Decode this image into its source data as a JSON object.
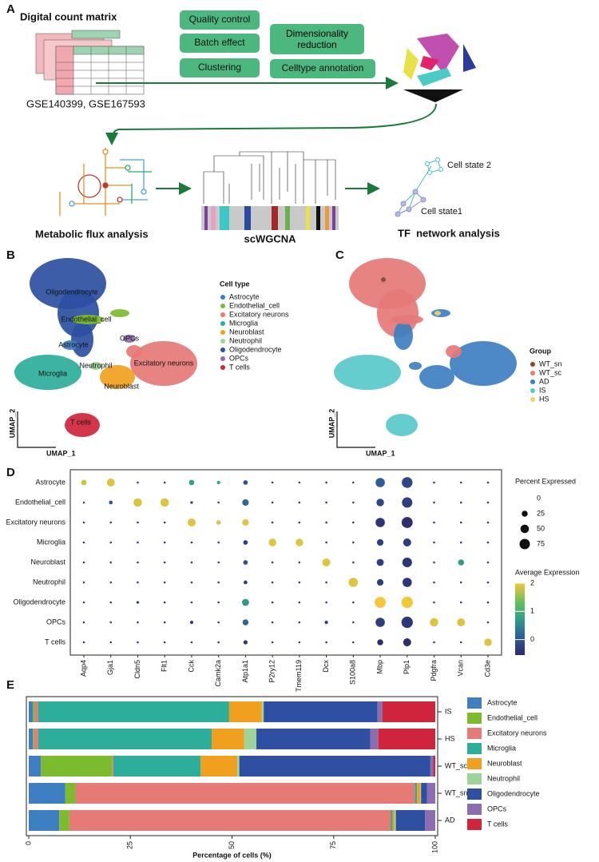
{
  "panel_labels": [
    "A",
    "B",
    "C",
    "D",
    "E"
  ],
  "workflow": {
    "matrix_title": "Digital count matrix",
    "datasets": "GSE140399, GSE167593",
    "steps": [
      "Quality control",
      "Batch effect",
      "Clustering",
      "Dimensionality reduction",
      "Celltype annotation"
    ],
    "analyses": [
      "Metabolic flux analysis",
      "scWGCNA",
      "TF  network analysis"
    ],
    "states": [
      "Cell state 2",
      "Cell state1"
    ]
  },
  "chart_data": [
    {
      "type": "scatter",
      "xlabel": "UMAP_1",
      "ylabel": "UMAP_2",
      "legend_title": "Cell type",
      "series": [
        {
          "name": "Astrocyte",
          "color": "#3e7fc1"
        },
        {
          "name": "Endothelial_cell",
          "color": "#7dbb2e"
        },
        {
          "name": "Excitatory neurons",
          "color": "#e57a77"
        },
        {
          "name": "Microglia",
          "color": "#2cae9b"
        },
        {
          "name": "Neuroblast",
          "color": "#f0a01e"
        },
        {
          "name": "Neutrophil",
          "color": "#9ed39a"
        },
        {
          "name": "Oligodendrocyte",
          "color": "#2e4fa2"
        },
        {
          "name": "OPCs",
          "color": "#8b6db0"
        },
        {
          "name": "T cells",
          "color": "#d0243c"
        }
      ],
      "cluster_labels": [
        "Astrocyte",
        "Endothelial_cell",
        "Excitatory neurons",
        "Microglia",
        "Neuroblast",
        "Neutrophil",
        "Oligodendrocyte",
        "OPCs",
        "T cells"
      ]
    },
    {
      "type": "scatter",
      "xlabel": "UMAP_1",
      "ylabel": "UMAP_2",
      "legend_title": "Group",
      "series": [
        {
          "name": "WT_sn",
          "color": "#8b4a2b"
        },
        {
          "name": "WT_sc",
          "color": "#e57a77"
        },
        {
          "name": "AD",
          "color": "#3e7fc1"
        },
        {
          "name": "IS",
          "color": "#58c9c9"
        },
        {
          "name": "HS",
          "color": "#efd46a"
        }
      ]
    },
    {
      "type": "dot",
      "categories": [
        "Aqp4",
        "Gja1",
        "Cldn5",
        "Flt1",
        "Cck",
        "Camk2a",
        "Atp1a1",
        "P2ry12",
        "Tmem119",
        "Dcx",
        "S100a8",
        "Mbp",
        "Plp1",
        "Pdgfra",
        "Vcan",
        "Cd3e"
      ],
      "series": [
        {
          "name": "Astrocyte",
          "values": [
            1.8,
            1.9,
            -0.3,
            -0.3,
            0.8,
            0.8,
            0,
            -0.3,
            -0.3,
            -0.3,
            -0.3,
            0.1,
            -0.2,
            -0.3,
            -0.3,
            -0.3
          ],
          "sizes": [
            20,
            45,
            3,
            3,
            20,
            8,
            15,
            3,
            3,
            3,
            3,
            60,
            80,
            3,
            3,
            3
          ]
        },
        {
          "name": "Endothelial_cell",
          "values": [
            -0.3,
            0,
            1.9,
            1.9,
            -0.2,
            -0.3,
            0.2,
            -0.3,
            -0.3,
            -0.3,
            -0.3,
            -0.2,
            -0.3,
            -0.3,
            -0.3,
            -0.3
          ],
          "sizes": [
            3,
            10,
            50,
            50,
            5,
            3,
            30,
            3,
            3,
            3,
            3,
            40,
            75,
            3,
            3,
            3
          ]
        },
        {
          "name": "Excitatory neurons",
          "values": [
            -0.3,
            -0.3,
            -0.3,
            -0.3,
            1.9,
            1.9,
            1.9,
            -0.3,
            -0.3,
            -0.3,
            -0.3,
            -0.4,
            -0.5,
            -0.3,
            -0.3,
            -0.3
          ],
          "sizes": [
            3,
            3,
            3,
            3,
            45,
            15,
            30,
            3,
            3,
            3,
            3,
            60,
            85,
            3,
            3,
            3
          ]
        },
        {
          "name": "Microglia",
          "values": [
            -0.3,
            -0.3,
            -0.3,
            -0.3,
            -0.3,
            -0.3,
            -0.3,
            1.9,
            1.9,
            -0.3,
            -0.3,
            -0.3,
            -0.3,
            -0.3,
            -0.3,
            -0.3
          ],
          "sizes": [
            3,
            3,
            3,
            3,
            3,
            3,
            15,
            40,
            40,
            3,
            3,
            30,
            45,
            3,
            3,
            3
          ]
        },
        {
          "name": "Neuroblast",
          "values": [
            -0.3,
            -0.3,
            -0.3,
            -0.3,
            -0.3,
            -0.3,
            -0.1,
            -0.3,
            -0.3,
            1.9,
            -0.3,
            -0.3,
            -0.4,
            -0.3,
            0.7,
            -0.3
          ],
          "sizes": [
            3,
            3,
            3,
            3,
            3,
            3,
            15,
            3,
            3,
            45,
            3,
            35,
            65,
            3,
            25,
            3
          ]
        },
        {
          "name": "Neutrophil",
          "values": [
            -0.3,
            -0.3,
            -0.3,
            -0.3,
            -0.3,
            -0.3,
            -0.3,
            -0.3,
            -0.3,
            -0.3,
            1.9,
            -0.3,
            -0.4,
            -0.3,
            -0.3,
            -0.3
          ],
          "sizes": [
            3,
            3,
            3,
            3,
            3,
            3,
            10,
            3,
            3,
            3,
            60,
            30,
            60,
            3,
            3,
            3
          ]
        },
        {
          "name": "Oligodendrocyte",
          "values": [
            -0.3,
            -0.3,
            -0.3,
            -0.3,
            -0.3,
            -0.3,
            0.7,
            -0.3,
            -0.3,
            -0.3,
            -0.3,
            2,
            2,
            -0.3,
            -0.3,
            -0.3
          ],
          "sizes": [
            3,
            3,
            5,
            3,
            3,
            3,
            35,
            3,
            3,
            3,
            3,
            85,
            90,
            3,
            3,
            3
          ]
        },
        {
          "name": "OPCs",
          "values": [
            -0.3,
            -0.3,
            -0.3,
            -0.3,
            -0.3,
            -0.3,
            0.2,
            -0.3,
            -0.3,
            -0.3,
            -0.3,
            -0.3,
            -0.4,
            1.9,
            1.9,
            -0.3
          ],
          "sizes": [
            3,
            3,
            3,
            3,
            8,
            3,
            25,
            3,
            3,
            8,
            3,
            60,
            90,
            50,
            45,
            3
          ]
        },
        {
          "name": "T cells",
          "values": [
            -0.3,
            -0.3,
            -0.3,
            -0.3,
            -0.3,
            -0.3,
            -0.4,
            -0.3,
            -0.3,
            -0.3,
            -0.3,
            -0.5,
            -0.5,
            -0.3,
            -0.3,
            1.9
          ],
          "sizes": [
            3,
            3,
            3,
            3,
            3,
            3,
            12,
            3,
            3,
            3,
            3,
            25,
            45,
            3,
            3,
            40
          ]
        }
      ],
      "size_legend": {
        "title": "Percent Expressed",
        "values": [
          0,
          25,
          50,
          75
        ]
      },
      "color_legend": {
        "title": "Average Expression",
        "lim": [
          -0.55,
          2
        ],
        "ticks": [
          0,
          1,
          2
        ]
      }
    },
    {
      "type": "stacked_barh",
      "xlabel": "Percentage of cells (%)",
      "categories": [
        "IS",
        "HS",
        "WT_sc",
        "WT_sn",
        "AD"
      ],
      "xlim": [
        0,
        100
      ],
      "xticks": [
        0,
        25,
        50,
        75,
        100
      ],
      "series": [
        {
          "name": "Astrocyte",
          "color": "#3e7fc1",
          "values": [
            1,
            1,
            3,
            9,
            7.5
          ]
        },
        {
          "name": "Endothelial_cell",
          "color": "#7dbb2e",
          "values": [
            0.5,
            0.3,
            17.5,
            2.5,
            2.5
          ]
        },
        {
          "name": "Excitatory neurons",
          "color": "#e57a77",
          "values": [
            0.8,
            1,
            0.3,
            83.5,
            79
          ]
        },
        {
          "name": "Microglia",
          "color": "#2cae9b",
          "values": [
            47,
            42.7,
            21.5,
            0.5,
            0.5
          ]
        },
        {
          "name": "Neuroblast",
          "color": "#f0a01e",
          "values": [
            8,
            8,
            9,
            0.8,
            0.5
          ]
        },
        {
          "name": "Neutrophil",
          "color": "#9ed39a",
          "values": [
            0.5,
            3,
            0.5,
            0.2,
            0.3
          ]
        },
        {
          "name": "Oligodendrocyte",
          "color": "#2e4fa2",
          "values": [
            28,
            28,
            47,
            1.5,
            7.2
          ]
        },
        {
          "name": "OPCs",
          "color": "#8b6db0",
          "values": [
            1.2,
            2,
            0.7,
            2,
            2.5
          ]
        },
        {
          "name": "T cells",
          "color": "#d0243c",
          "values": [
            13,
            14,
            0.5,
            0,
            0
          ]
        }
      ]
    }
  ]
}
